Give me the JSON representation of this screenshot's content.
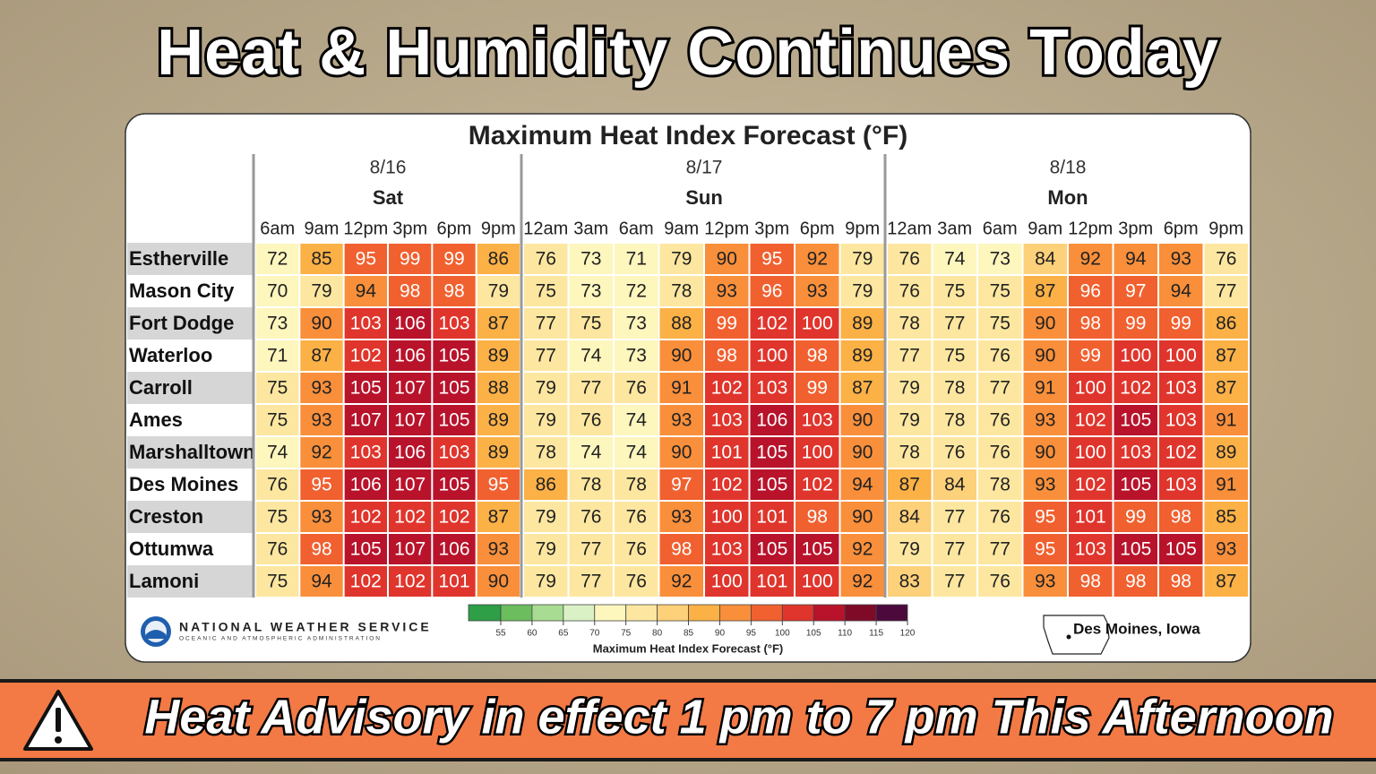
{
  "header": {
    "title": "Heat & Humidity Continues Today"
  },
  "panel": {
    "title": "Maximum Heat Index Forecast (°F)"
  },
  "table": {
    "days": [
      {
        "date": "8/16",
        "day": "Sat",
        "times": [
          "6am",
          "9am",
          "12pm",
          "3pm",
          "6pm",
          "9pm"
        ]
      },
      {
        "date": "8/17",
        "day": "Sun",
        "times": [
          "12am",
          "3am",
          "6am",
          "9am",
          "12pm",
          "3pm",
          "6pm",
          "9pm"
        ]
      },
      {
        "date": "8/18",
        "day": "Mon",
        "times": [
          "12am",
          "3am",
          "6am",
          "9am",
          "12pm",
          "3pm",
          "6pm",
          "9pm"
        ]
      }
    ],
    "rows": [
      {
        "city": "Estherville",
        "values": [
          72,
          85,
          95,
          99,
          99,
          86,
          76,
          73,
          71,
          79,
          90,
          95,
          92,
          79,
          76,
          74,
          73,
          84,
          92,
          94,
          93,
          76
        ]
      },
      {
        "city": "Mason City",
        "values": [
          70,
          79,
          94,
          98,
          98,
          79,
          75,
          73,
          72,
          78,
          93,
          96,
          93,
          79,
          76,
          75,
          75,
          87,
          96,
          97,
          94,
          77
        ]
      },
      {
        "city": "Fort Dodge",
        "values": [
          73,
          90,
          103,
          106,
          103,
          87,
          77,
          75,
          73,
          88,
          99,
          102,
          100,
          89,
          78,
          77,
          75,
          90,
          98,
          99,
          99,
          86
        ]
      },
      {
        "city": "Waterloo",
        "values": [
          71,
          87,
          102,
          106,
          105,
          89,
          77,
          74,
          73,
          90,
          98,
          100,
          98,
          89,
          77,
          75,
          76,
          90,
          99,
          100,
          100,
          87
        ]
      },
      {
        "city": "Carroll",
        "values": [
          75,
          93,
          105,
          107,
          105,
          88,
          79,
          77,
          76,
          91,
          102,
          103,
          99,
          87,
          79,
          78,
          77,
          91,
          100,
          102,
          103,
          87
        ]
      },
      {
        "city": "Ames",
        "values": [
          75,
          93,
          107,
          107,
          105,
          89,
          79,
          76,
          74,
          93,
          103,
          106,
          103,
          90,
          79,
          78,
          76,
          93,
          102,
          105,
          103,
          91
        ]
      },
      {
        "city": "Marshalltown",
        "values": [
          74,
          92,
          103,
          106,
          103,
          89,
          78,
          74,
          74,
          90,
          101,
          105,
          100,
          90,
          78,
          76,
          76,
          90,
          100,
          103,
          102,
          89
        ]
      },
      {
        "city": "Des Moines",
        "values": [
          76,
          95,
          106,
          107,
          105,
          95,
          86,
          78,
          78,
          97,
          102,
          105,
          102,
          94,
          87,
          84,
          78,
          93,
          102,
          105,
          103,
          91
        ]
      },
      {
        "city": "Creston",
        "values": [
          75,
          93,
          102,
          102,
          102,
          87,
          79,
          76,
          76,
          93,
          100,
          101,
          98,
          90,
          84,
          77,
          76,
          95,
          101,
          99,
          98,
          85
        ]
      },
      {
        "city": "Ottumwa",
        "values": [
          76,
          98,
          105,
          107,
          106,
          93,
          79,
          77,
          76,
          98,
          103,
          105,
          105,
          92,
          79,
          77,
          77,
          95,
          103,
          105,
          105,
          93
        ]
      },
      {
        "city": "Lamoni",
        "values": [
          75,
          94,
          102,
          102,
          101,
          90,
          79,
          77,
          76,
          92,
          100,
          101,
          100,
          92,
          83,
          77,
          76,
          93,
          98,
          98,
          98,
          87
        ]
      }
    ]
  },
  "colorbar": {
    "label": "Maximum Heat Index Forecast (°F)",
    "ticks": [
      55,
      60,
      65,
      70,
      75,
      80,
      85,
      90,
      95,
      100,
      105,
      110,
      115,
      120
    ],
    "colors": [
      "#2e9e47",
      "#6cbd5e",
      "#a8dc92",
      "#d9f1c4",
      "#fdf6bd",
      "#fde7a0",
      "#fdd07a",
      "#fbb146",
      "#f98f3a",
      "#f1602f",
      "#e0352c",
      "#b8132b",
      "#7f0a27",
      "#4c0a3c"
    ]
  },
  "footer": {
    "agency": "NATIONAL WEATHER SERVICE",
    "subagency": "OCEANIC AND ATMOSPHERIC ADMINISTRATION",
    "location": "Des Moines, Iowa"
  },
  "banner": {
    "text": "Heat Advisory in effect 1 pm to 7 pm This Afternoon"
  }
}
